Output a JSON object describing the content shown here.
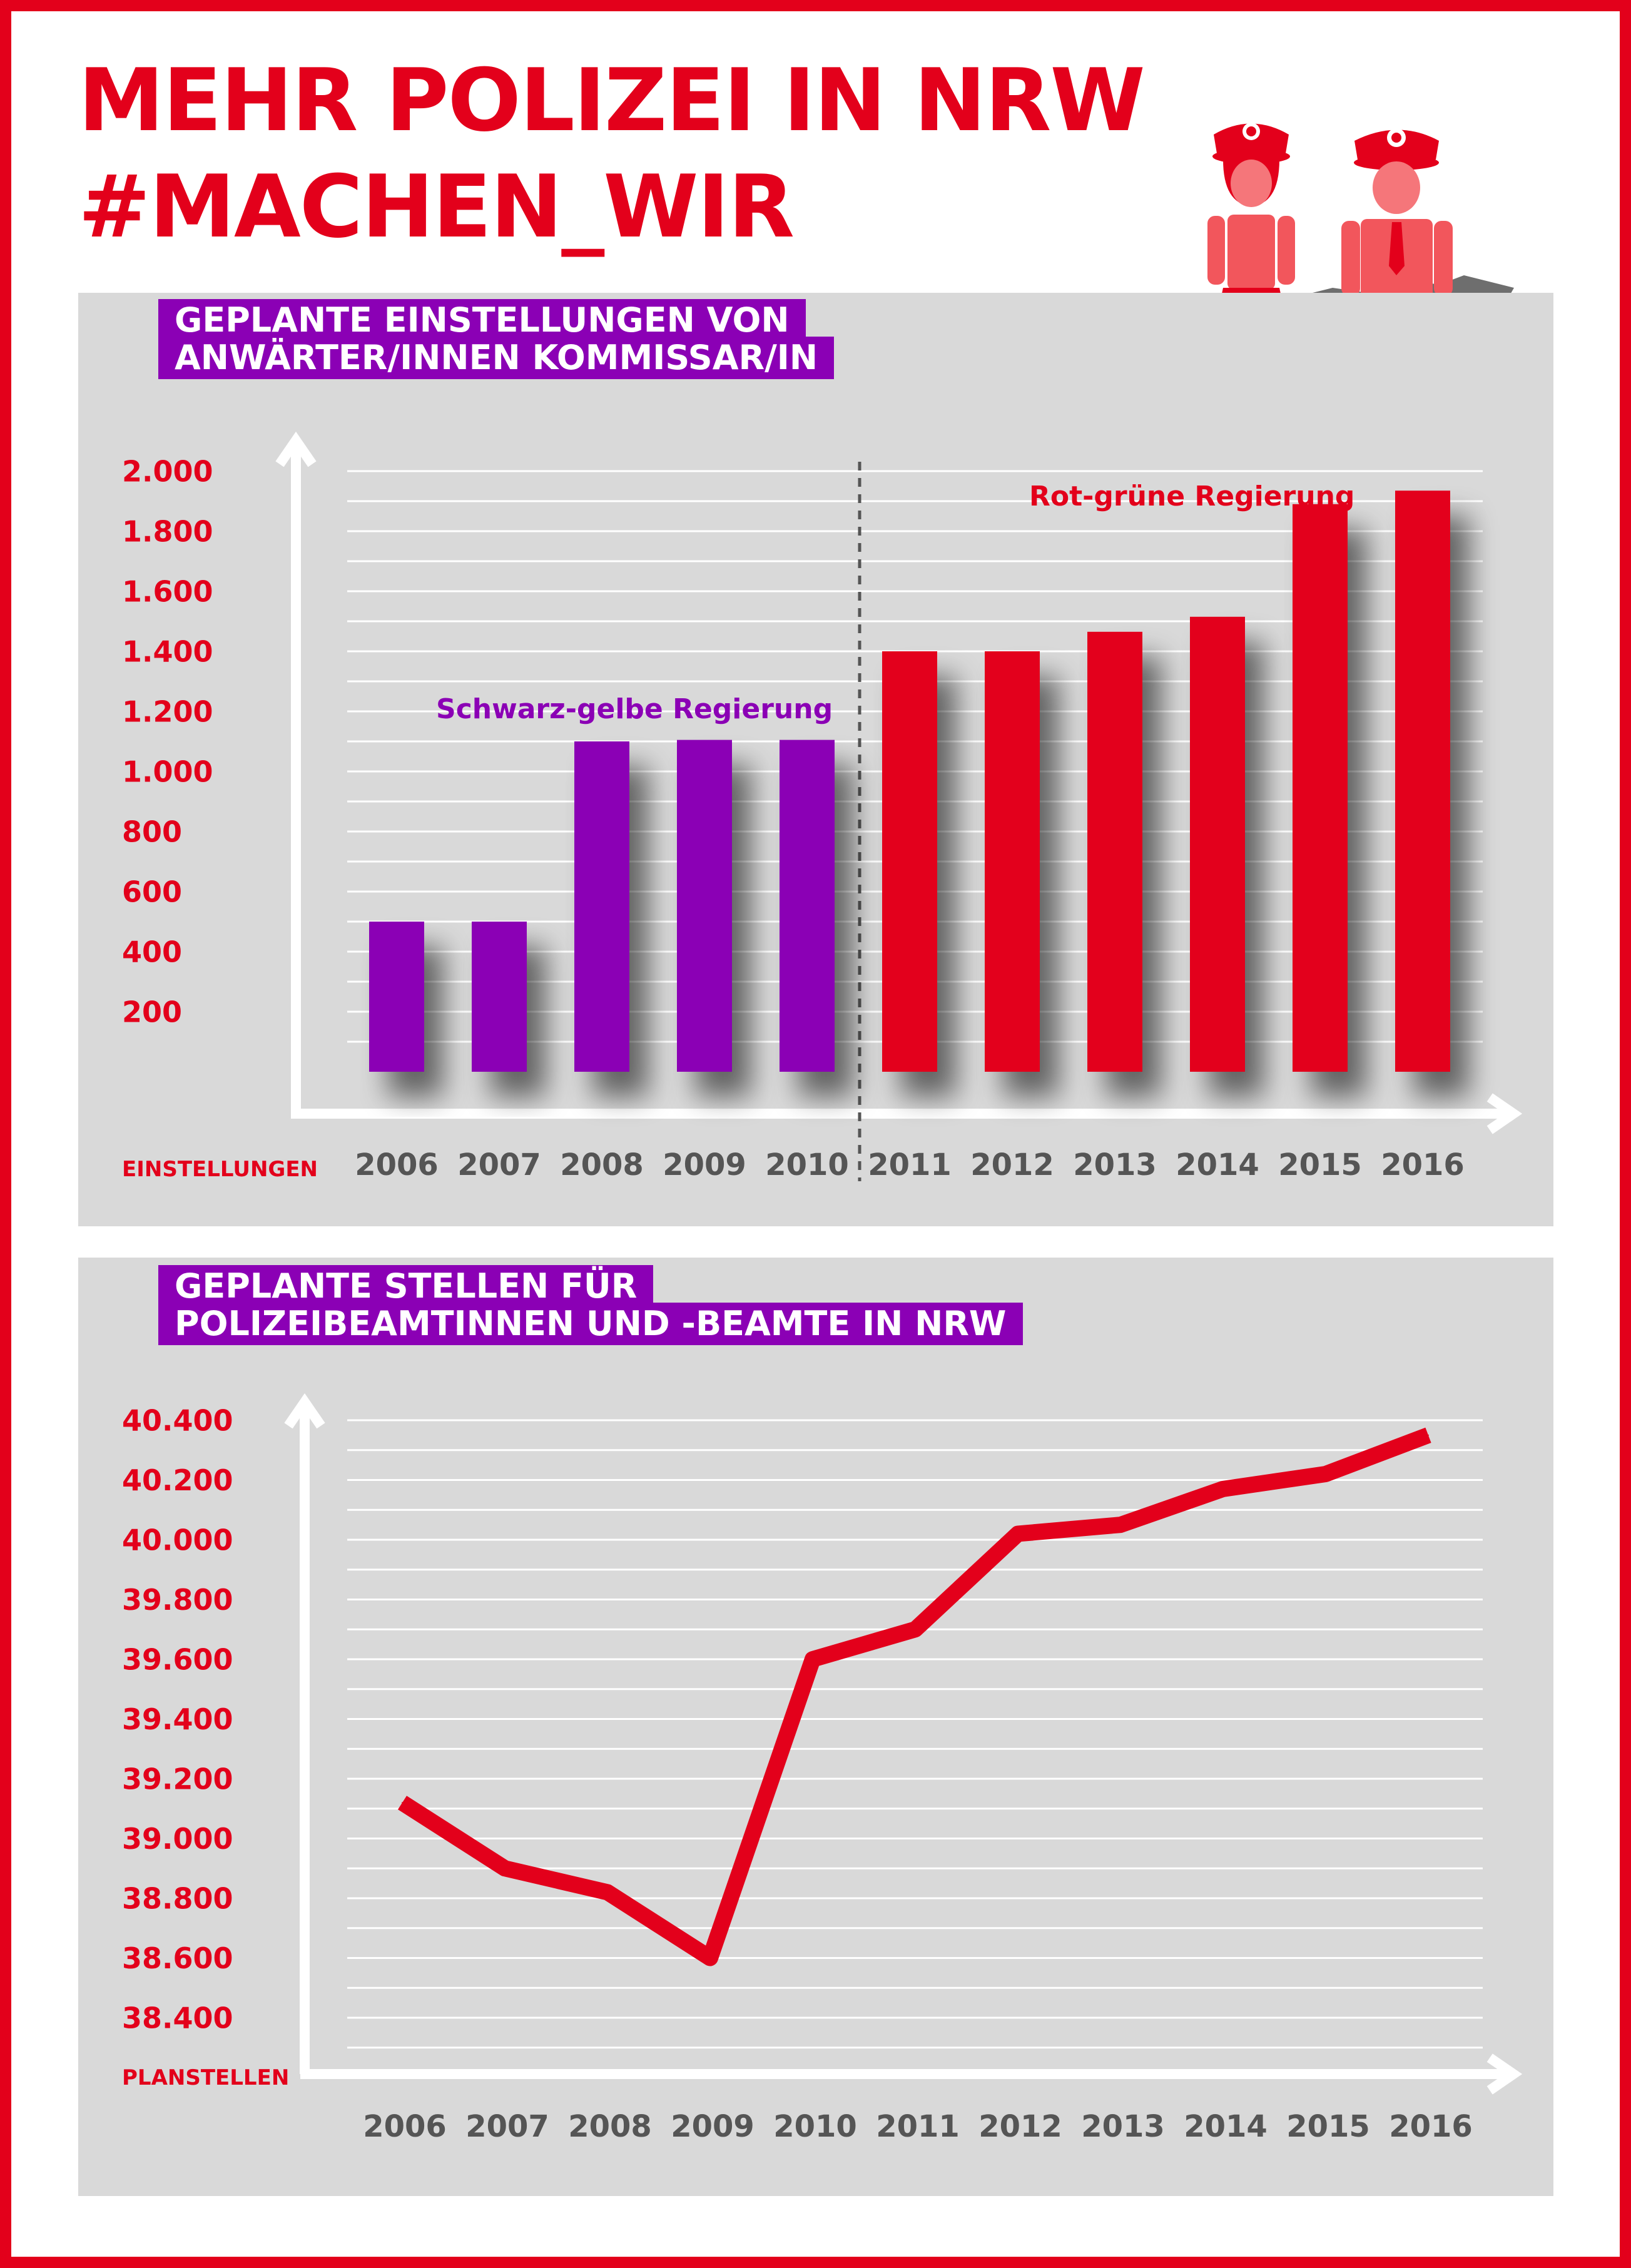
{
  "header": {
    "title_line1": "MEHR POLIZEI IN NRW",
    "title_line2": "#MACHEN_WIR"
  },
  "colors": {
    "red": "#e3001b",
    "purple": "#8b00b5",
    "panel": "#d9d9d9",
    "axis_text": "#555555"
  },
  "icons": [
    "policewoman-icon",
    "policeman-icon",
    "nrw-map-silhouette-icon"
  ],
  "chart_data": [
    {
      "type": "bar",
      "title_line1": "GEPLANTE EINSTELLUNGEN VON",
      "title_line2": "ANWÄRTER/INNEN KOMMISSAR/IN",
      "ylabel": "EINSTELLUNGEN",
      "categories": [
        "2006",
        "2007",
        "2008",
        "2009",
        "2010",
        "2011",
        "2012",
        "2013",
        "2014",
        "2015",
        "2016"
      ],
      "values": [
        500,
        500,
        1100,
        1105,
        1105,
        1400,
        1400,
        1465,
        1515,
        1890,
        1935
      ],
      "y_ticks": [
        200,
        400,
        600,
        800,
        1000,
        1200,
        1400,
        1600,
        1800,
        2000
      ],
      "y_tick_labels": [
        "200",
        "400",
        "600",
        "800",
        "1.000",
        "1.200",
        "1.400",
        "1.600",
        "1.800",
        "2.000"
      ],
      "ylim": [
        0,
        2000
      ],
      "bar_colors": [
        "#8b00b5",
        "#8b00b5",
        "#8b00b5",
        "#8b00b5",
        "#8b00b5",
        "#e3001b",
        "#e3001b",
        "#e3001b",
        "#e3001b",
        "#e3001b",
        "#e3001b"
      ],
      "annotations": [
        {
          "text": "Schwarz-gelbe Regierung",
          "color": "#8b00b5"
        },
        {
          "text": "Rot-grüne Regierung",
          "color": "#e3001b"
        }
      ],
      "divider_between": [
        "2010",
        "2011"
      ],
      "grid": true
    },
    {
      "type": "line",
      "title_line1": "GEPLANTE STELLEN FÜR",
      "title_line2": "POLIZEIBEAMTINNEN UND -BEAMTE IN NRW",
      "ylabel": "PLANSTELLEN",
      "x": [
        "2006",
        "2007",
        "2008",
        "2009",
        "2010",
        "2011",
        "2012",
        "2013",
        "2014",
        "2015",
        "2016"
      ],
      "values": [
        39120,
        38900,
        38820,
        38600,
        39600,
        39700,
        40020,
        40050,
        40170,
        40220,
        40350
      ],
      "y_ticks": [
        38400,
        38600,
        38800,
        39000,
        39200,
        39400,
        39600,
        39800,
        40000,
        40200,
        40400
      ],
      "y_tick_labels": [
        "38.400",
        "38.600",
        "38.800",
        "39.000",
        "39.200",
        "39.400",
        "39.600",
        "39.800",
        "40.000",
        "40.200",
        "40.400"
      ],
      "ylim": [
        38400,
        40400
      ],
      "line_color": "#e3001b",
      "grid": true
    }
  ]
}
